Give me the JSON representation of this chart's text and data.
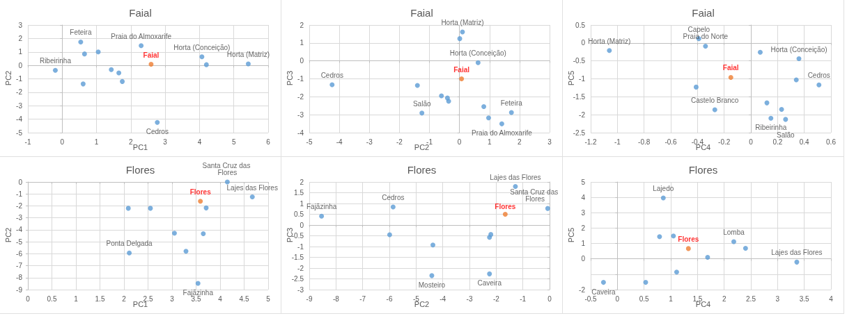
{
  "chart_data": [
    {
      "type": "scatter",
      "title": "Faial",
      "xlabel": "PC1",
      "ylabel": "PC2",
      "xlim": [
        -1,
        6
      ],
      "xticks": [
        -1,
        0,
        1,
        2,
        3,
        4,
        5,
        6
      ],
      "ylim": [
        -5,
        3
      ],
      "yticks": [
        -5,
        -4,
        -3,
        -2,
        -1,
        0,
        1,
        2,
        3
      ],
      "grid": true,
      "marker": "circle",
      "series": [
        {
          "color": "#5b9bd5",
          "x": [
            0.54,
            0.65,
            1.05,
            2.3,
            4.07,
            4.2,
            5.42,
            -0.2,
            1.43,
            1.65,
            1.75,
            0.61,
            2.77
          ],
          "values": [
            1.74,
            0.85,
            1.0,
            1.46,
            0.64,
            0.05,
            0.11,
            -0.37,
            -0.32,
            -0.56,
            -1.2,
            -1.38,
            -4.24
          ],
          "value_labels": [
            "Feteira",
            null,
            null,
            "Praia do Almoxarife",
            "Horta (Conceição)",
            null,
            "Horta (Matriz)",
            "Ribeirinha",
            null,
            null,
            null,
            null,
            "Cedros"
          ]
        },
        {
          "color": "#ed7d31",
          "x": [
            2.59
          ],
          "values": [
            0.08
          ],
          "value_labels": [
            "Faial"
          ]
        }
      ]
    },
    {
      "type": "scatter",
      "title": "Faial",
      "xlabel": "PC2",
      "ylabel": "PC3",
      "xlim": [
        -5,
        3
      ],
      "xticks": [
        -5,
        -4,
        -3,
        -2,
        -1,
        0,
        1,
        2,
        3
      ],
      "ylim": [
        -4,
        2
      ],
      "yticks": [
        -4,
        -3,
        -2,
        -1,
        0,
        1,
        2
      ],
      "grid": true,
      "marker": "circle",
      "series": [
        {
          "color": "#5b9bd5",
          "x": [
            0.1,
            0.01,
            0.62,
            -4.24,
            -1.4,
            -0.6,
            -0.4,
            -0.36,
            -1.25,
            0.81,
            1.73,
            0.97,
            1.41
          ],
          "values": [
            1.61,
            1.24,
            -0.1,
            -1.33,
            -1.37,
            -1.95,
            -2.07,
            -2.25,
            -2.91,
            -2.55,
            -2.88,
            -3.18,
            -3.51
          ],
          "value_labels": [
            "Horta (Matriz)",
            null,
            "Horta (Conceição)",
            "Cedros",
            null,
            null,
            null,
            null,
            "Salão",
            null,
            "Feteira",
            null,
            "Praia do Almoxarife"
          ]
        },
        {
          "color": "#ed7d31",
          "x": [
            0.07
          ],
          "values": [
            -1.0
          ],
          "value_labels": [
            "Faial"
          ]
        }
      ]
    },
    {
      "type": "scatter",
      "title": "Faial",
      "xlabel": "PC4",
      "ylabel": "PC5",
      "xlim": [
        -1.2,
        0.6
      ],
      "xticks": [
        -1.2,
        -1,
        -0.8,
        -0.6,
        -0.4,
        -0.2,
        0,
        0.2,
        0.4,
        0.6
      ],
      "ylim": [
        -2.5,
        0.5
      ],
      "yticks": [
        -2.5,
        -2,
        -1.5,
        -1,
        -0.5,
        0,
        0.5
      ],
      "grid": true,
      "marker": "circle",
      "series": [
        {
          "color": "#5b9bd5",
          "x": [
            -1.06,
            -0.39,
            -0.34,
            0.07,
            0.36,
            0.34,
            0.51,
            -0.41,
            -0.27,
            0.12,
            0.23,
            0.15,
            0.26
          ],
          "values": [
            -0.21,
            0.12,
            -0.09,
            -0.26,
            -0.44,
            -1.03,
            -1.17,
            -1.23,
            -1.86,
            -1.67,
            -1.85,
            -2.1,
            -2.13
          ],
          "value_labels": [
            "Horta (Matriz)",
            "Capelo",
            "Praia do Norte",
            null,
            "Horta (Conceição)",
            null,
            "Cedros",
            null,
            "Castelo Branco",
            null,
            null,
            "Ribeirinha",
            "Salão"
          ]
        },
        {
          "color": "#ed7d31",
          "x": [
            -0.15
          ],
          "values": [
            -0.96
          ],
          "value_labels": [
            "Faial"
          ]
        }
      ]
    },
    {
      "type": "scatter",
      "title": "Flores",
      "xlabel": "PC1",
      "ylabel": "PC2",
      "xlim": [
        0,
        5
      ],
      "xticks": [
        0,
        0.5,
        1,
        1.5,
        2,
        2.5,
        3,
        3.5,
        4,
        4.5,
        5
      ],
      "ylim": [
        -9,
        0
      ],
      "yticks": [
        -9,
        -8,
        -7,
        -6,
        -5,
        -4,
        -3,
        -2,
        -1,
        0
      ],
      "grid": true,
      "marker": "circle",
      "series": [
        {
          "color": "#5b9bd5",
          "x": [
            4.15,
            4.67,
            3.71,
            2.09,
            2.55,
            3.05,
            3.65,
            2.11,
            3.29,
            3.54
          ],
          "values": [
            0,
            -1.25,
            -2.17,
            -2.2,
            -2.2,
            -4.28,
            -4.33,
            -5.94,
            -5.79,
            -8.48
          ],
          "value_labels": [
            "Santa Cruz das Flores",
            "Lajes das Flores",
            null,
            null,
            null,
            null,
            null,
            "Ponta Delgada",
            null,
            "Fajãzinha"
          ]
        },
        {
          "color": "#ed7d31",
          "x": [
            3.59
          ],
          "values": [
            -1.61
          ],
          "value_labels": [
            "Flores"
          ]
        }
      ]
    },
    {
      "type": "scatter",
      "title": "Flores",
      "xlabel": "PC2",
      "ylabel": "PC3",
      "xlim": [
        -9,
        0
      ],
      "xticks": [
        -9,
        -8,
        -7,
        -6,
        -5,
        -4,
        -3,
        -2,
        -1,
        0
      ],
      "ylim": [
        -3,
        2
      ],
      "yticks": [
        -3,
        -2.5,
        -2,
        -1.5,
        -1,
        -0.5,
        0,
        0.5,
        1,
        1.5,
        2
      ],
      "grid": true,
      "marker": "circle",
      "series": [
        {
          "color": "#5b9bd5",
          "x": [
            -1.28,
            -0.07,
            -5.86,
            -8.54,
            -5.99,
            -2.2,
            -2.25,
            -4.37,
            -4.41,
            -2.25
          ],
          "values": [
            1.79,
            0.77,
            0.84,
            0.41,
            -0.45,
            -0.44,
            -0.57,
            -0.93,
            -2.35,
            -2.27
          ],
          "value_labels": [
            "Lajes das Flores",
            "Santa Cruz das Flores",
            "Cedros",
            "Fajãzinha",
            null,
            null,
            null,
            null,
            "Mosteiro",
            "Caveira"
          ]
        },
        {
          "color": "#ed7d31",
          "x": [
            -1.66
          ],
          "values": [
            0.5
          ],
          "value_labels": [
            "Flores"
          ]
        }
      ]
    },
    {
      "type": "scatter",
      "title": "Flores",
      "xlabel": "PC4",
      "ylabel": "PC5",
      "xlim": [
        -0.5,
        4
      ],
      "xticks": [
        -0.5,
        0,
        0.5,
        1,
        1.5,
        2,
        2.5,
        3,
        3.5,
        4
      ],
      "ylim": [
        -2,
        5
      ],
      "yticks": [
        -2,
        {
          "value": -1,
          "label": null
        },
        0,
        1,
        2,
        3,
        4,
        5
      ],
      "grid": true,
      "marker": "circle",
      "series": [
        {
          "color": "#5b9bd5",
          "x": [
            0.86,
            0.79,
            1.05,
            2.18,
            2.4,
            1.69,
            3.36,
            1.11,
            -0.26,
            0.53
          ],
          "values": [
            3.96,
            1.44,
            1.49,
            1.12,
            0.69,
            0.1,
            -0.21,
            -0.86,
            -1.53,
            -1.53
          ],
          "value_labels": [
            "Lajedo",
            null,
            null,
            "Lomba",
            null,
            null,
            "Lajes das Flores",
            null,
            "Caveira",
            null
          ]
        },
        {
          "color": "#ed7d31",
          "x": [
            1.33
          ],
          "values": [
            0.67
          ],
          "value_labels": [
            "Flores"
          ]
        }
      ]
    }
  ]
}
